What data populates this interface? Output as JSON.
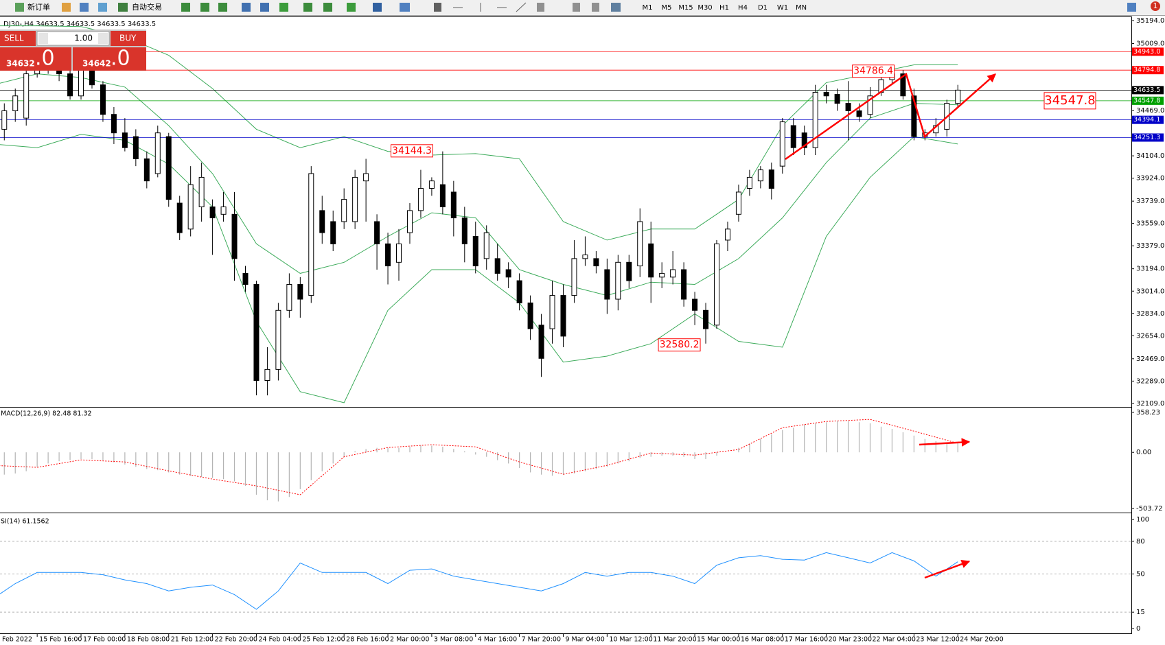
{
  "toolbar": {
    "new_order": "新订单",
    "auto_trading": "自动交易",
    "timeframes": [
      "M1",
      "M5",
      "M15",
      "M30",
      "H1",
      "H4",
      "D1",
      "W1",
      "MN"
    ],
    "badge": "1"
  },
  "chart_header": "DJ30-,H4  34633.5 34633.5 34633.5 34633.5",
  "trade_panel": {
    "sell": "SELL",
    "buy": "BUY",
    "lot": "1.00",
    "sell_price": "34632",
    "sell_fraction": ".0",
    "buy_price": "34642",
    "buy_fraction": ".0"
  },
  "chart_data": [
    {
      "type": "candlestick",
      "ylim": [
        32081,
        35216
      ],
      "yticks": [
        {
          "value": 35194,
          "label": "35194.0"
        },
        {
          "value": 35009,
          "label": "35009.0"
        },
        {
          "value": 34469,
          "label": "34469.0"
        },
        {
          "value": 34104,
          "label": "34104.0"
        },
        {
          "value": 33924,
          "label": "33924.0"
        },
        {
          "value": 33739,
          "label": "33739.0"
        },
        {
          "value": 33559,
          "label": "33559.0"
        },
        {
          "value": 33379,
          "label": "33379.0"
        },
        {
          "value": 33194,
          "label": "33194.0"
        },
        {
          "value": 33014,
          "label": "33014.0"
        },
        {
          "value": 32834,
          "label": "32834.0"
        },
        {
          "value": 32654,
          "label": "32654.0"
        },
        {
          "value": 32469,
          "label": "32469.0"
        },
        {
          "value": 32289,
          "label": "32289.0"
        },
        {
          "value": 32109,
          "label": "32109.0"
        }
      ],
      "levels": [
        {
          "value": 34943,
          "label": "34943.0",
          "color": "#ff0000"
        },
        {
          "value": 34794.8,
          "color": "#ff0000"
        },
        {
          "value": 34633.5,
          "color": "#000000"
        },
        {
          "value": 34547.8,
          "color": "#00a000"
        },
        {
          "value": 34394.1,
          "color": "#0000c8"
        },
        {
          "value": 34251.3,
          "color": "#0000c8"
        }
      ],
      "annotations": [
        34786.4,
        34144.3,
        32580.2
      ],
      "price_label": 34547.8,
      "band_color": "#3cab5a",
      "candles": [
        [
          34318,
          34527,
          34229,
          34467
        ],
        [
          34467,
          34646,
          34378,
          34587
        ],
        [
          34408,
          34825,
          34348,
          34765
        ],
        [
          34765,
          34855,
          34735,
          34813
        ],
        [
          34813,
          34884,
          34765,
          34855
        ],
        [
          34837,
          34872,
          34706,
          34765
        ],
        [
          34765,
          34795,
          34557,
          34587
        ],
        [
          34587,
          34855,
          34557,
          34795
        ],
        [
          34795,
          34843,
          34646,
          34676
        ],
        [
          34676,
          34706,
          34378,
          34438
        ],
        [
          34438,
          34497,
          34199,
          34289
        ],
        [
          34289,
          34408,
          34140,
          34170
        ],
        [
          34259,
          34318,
          34021,
          34080
        ],
        [
          34080,
          34140,
          33842,
          33902
        ],
        [
          33961,
          34348,
          33931,
          34289
        ],
        [
          34259,
          34289,
          33693,
          33753
        ],
        [
          33723,
          33782,
          33425,
          33485
        ],
        [
          33514,
          34021,
          33455,
          33872
        ],
        [
          33693,
          34050,
          33574,
          33931
        ],
        [
          33693,
          33753,
          33306,
          33604
        ],
        [
          33633,
          33812,
          33574,
          33693
        ],
        [
          33633,
          33812,
          33098,
          33276
        ],
        [
          33157,
          33217,
          33008,
          33068
        ],
        [
          33068,
          33098,
          32174,
          32294
        ],
        [
          32294,
          32562,
          32174,
          32383
        ],
        [
          32383,
          32919,
          32294,
          32859
        ],
        [
          32859,
          33157,
          32800,
          33068
        ],
        [
          33068,
          33127,
          32800,
          32949
        ],
        [
          32979,
          34021,
          32919,
          33961
        ],
        [
          33663,
          33782,
          33395,
          33485
        ],
        [
          33574,
          33663,
          33336,
          33395
        ],
        [
          33574,
          33842,
          33514,
          33753
        ],
        [
          33574,
          33991,
          33514,
          33931
        ],
        [
          33902,
          34080,
          33574,
          33961
        ],
        [
          33574,
          33633,
          33187,
          33395
        ],
        [
          33395,
          33485,
          33068,
          33217
        ],
        [
          33246,
          33514,
          33098,
          33395
        ],
        [
          33485,
          33723,
          33395,
          33663
        ],
        [
          33663,
          33991,
          33604,
          33842
        ],
        [
          33842,
          33931,
          33782,
          33902
        ],
        [
          33872,
          34140,
          33633,
          33693
        ],
        [
          33812,
          33902,
          33455,
          33604
        ],
        [
          33604,
          33693,
          33246,
          33395
        ],
        [
          33455,
          33574,
          33157,
          33217
        ],
        [
          33276,
          33544,
          33187,
          33485
        ],
        [
          33276,
          33395,
          33098,
          33157
        ],
        [
          33187,
          33246,
          33038,
          33127
        ],
        [
          33098,
          33157,
          32859,
          32919
        ],
        [
          32919,
          32979,
          32621,
          32711
        ],
        [
          32740,
          32830,
          32323,
          32472
        ],
        [
          32711,
          33098,
          32591,
          32979
        ],
        [
          32979,
          33068,
          32562,
          32651
        ],
        [
          32979,
          33425,
          32919,
          33276
        ],
        [
          33276,
          33455,
          33217,
          33306
        ],
        [
          33276,
          33336,
          33157,
          33217
        ],
        [
          33187,
          33276,
          32830,
          32949
        ],
        [
          32949,
          33306,
          32859,
          33246
        ],
        [
          33246,
          33306,
          33038,
          33098
        ],
        [
          33217,
          33681,
          33127,
          33574
        ],
        [
          33395,
          33574,
          32919,
          33127
        ],
        [
          33127,
          33246,
          33038,
          33157
        ],
        [
          33127,
          33336,
          33068,
          33187
        ],
        [
          33187,
          33246,
          32889,
          32949
        ],
        [
          32949,
          33008,
          32740,
          32859
        ],
        [
          32859,
          32919,
          32591,
          32711
        ],
        [
          32740,
          33425,
          32711,
          33395
        ],
        [
          33425,
          33574,
          33336,
          33514
        ],
        [
          33633,
          33872,
          33574,
          33812
        ],
        [
          33842,
          33991,
          33782,
          33931
        ],
        [
          33902,
          34021,
          33842,
          33991
        ],
        [
          33991,
          34050,
          33753,
          33842
        ],
        [
          34021,
          34408,
          33961,
          34378
        ],
        [
          34348,
          34408,
          34110,
          34170
        ],
        [
          34289,
          34348,
          34110,
          34170
        ],
        [
          34170,
          34676,
          34110,
          34616
        ],
        [
          34616,
          34676,
          34527,
          34587
        ],
        [
          34599,
          34646,
          34467,
          34527
        ],
        [
          34527,
          34706,
          34229,
          34467
        ],
        [
          34467,
          34527,
          34378,
          34420
        ],
        [
          34438,
          34658,
          34408,
          34587
        ],
        [
          34616,
          34765,
          34587,
          34718
        ],
        [
          34718,
          34795,
          34676,
          34765
        ],
        [
          34765,
          34795,
          34557,
          34587
        ],
        [
          34587,
          34646,
          34229,
          34259
        ],
        [
          34259,
          34318,
          34229,
          34289
        ],
        [
          34289,
          34408,
          34259,
          34348
        ],
        [
          34318,
          34557,
          34259,
          34527
        ],
        [
          34527,
          34676,
          34497,
          34633.5
        ]
      ],
      "bands": {
        "upper": [
          35152,
          35152,
          35146,
          35063,
          34914,
          34646,
          34318,
          34170,
          34259,
          34140,
          34110,
          34122,
          34080,
          33574,
          33425,
          33514,
          33514,
          33753,
          34348,
          34694,
          34765,
          34837,
          34837
        ],
        "middle": [
          34676,
          34765,
          34735,
          34658,
          34348,
          33961,
          33395,
          33157,
          33246,
          33455,
          33645,
          33604,
          33187,
          33068,
          32979,
          33086,
          33068,
          33276,
          33604,
          34050,
          34408,
          34527,
          34515
        ],
        "lower": [
          34199,
          34170,
          34277,
          34229,
          34038,
          33693,
          32770,
          32204,
          32115,
          32859,
          33187,
          33187,
          32919,
          32442,
          32490,
          32591,
          32830,
          32609,
          32562,
          33455,
          33931,
          34259,
          34199
        ]
      }
    },
    {
      "type": "macd",
      "label": "MACD(12,26,9) 82.48 81.32",
      "ylim": [
        -534,
        401
      ],
      "yticks": [
        {
          "value": 358.23,
          "label": "358.23"
        },
        {
          "value": 0,
          "label": "0.00"
        },
        {
          "value": -503.72,
          "label": "-503.72"
        }
      ],
      "bar_color": "#b4b4b4",
      "signal_color": "#ff0000",
      "histogram": [
        -200,
        -190,
        -170,
        -130,
        -100,
        -80,
        -70,
        -60,
        -60,
        -70,
        -90,
        -110,
        -130,
        -150,
        -160,
        -180,
        -200,
        -210,
        -220,
        -230,
        -240,
        -260,
        -300,
        -380,
        -430,
        -440,
        -400,
        -330,
        -250,
        -170,
        -100,
        -40,
        10,
        30,
        40,
        40,
        40,
        50,
        60,
        60,
        50,
        30,
        10,
        -20,
        -40,
        -70,
        -100,
        -140,
        -180,
        -200,
        -210,
        -200,
        -190,
        -170,
        -150,
        -130,
        -100,
        -80,
        -50,
        -40,
        -30,
        -30,
        -40,
        -60,
        -60,
        -30,
        0,
        40,
        80,
        120,
        160,
        200,
        220,
        250,
        260,
        270,
        280,
        280,
        270,
        260,
        230,
        210,
        180,
        150,
        120,
        100,
        90,
        82.48
      ],
      "signal": [
        -117,
        -135,
        -68,
        -86,
        -166,
        -240,
        -301,
        -380,
        -40,
        43,
        68,
        49,
        -86,
        -197,
        -117,
        -6,
        -25,
        25,
        221,
        277,
        295,
        190,
        81.32
      ]
    },
    {
      "type": "line",
      "label": "SI(14) 61.1562",
      "ylim": [
        -4.4,
        105.7
      ],
      "yticks": [
        100,
        80,
        50,
        15,
        0
      ],
      "levels": [
        80,
        50,
        15
      ],
      "color": "#1e90ff",
      "values": [
        27.7,
        41.2,
        51.4,
        51.4,
        51.4,
        49.3,
        44.6,
        41.2,
        34.5,
        37.8,
        39.9,
        31.1,
        17.6,
        34.5,
        60.1,
        51.4,
        51.4,
        51.4,
        41.2,
        53.4,
        54.7,
        48.0,
        44.6,
        41.2,
        37.8,
        34.5,
        41.2,
        51.4,
        48.0,
        51.4,
        51.4,
        48.0,
        41.2,
        58.1,
        64.9,
        66.9,
        63.5,
        62.8,
        69.6,
        64.9,
        60.1,
        69.6,
        62,
        48.0,
        61.2
      ],
      "x_labels": [
        "Feb 2022",
        "15 Feb 16:00",
        "17 Feb 00:00",
        "18 Feb 08:00",
        "21 Feb 12:00",
        "22 Feb 20:00",
        "24 Feb 04:00",
        "25 Feb 12:00",
        "28 Feb 16:00",
        "2 Mar 00:00",
        "3 Mar 08:00",
        "4 Mar 16:00",
        "7 Mar 20:00",
        "9 Mar 04:00",
        "10 Mar 12:00",
        "11 Mar 20:00",
        "15 Mar 00:00",
        "16 Mar 08:00",
        "17 Mar 16:00",
        "20 Mar 23:00",
        "22 Mar 04:00",
        "23 Mar 12:00",
        "24 Mar 20:00"
      ]
    }
  ]
}
